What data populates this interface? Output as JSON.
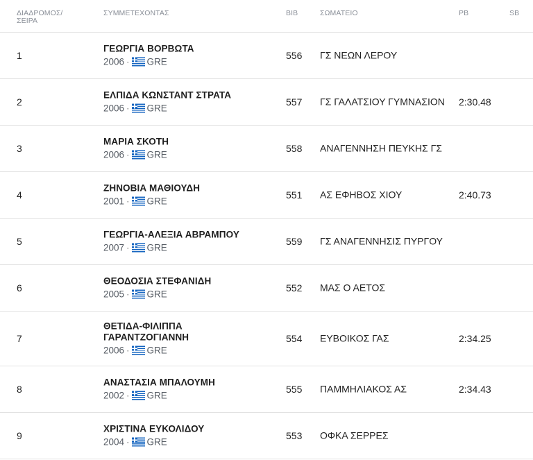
{
  "headers": {
    "lane": "ΔΙΑΔΡΟΜΟΣ/ ΣΕΙΡΑ",
    "athlete": "ΣΥΜΜΕΤΕΧΟΝΤΑΣ",
    "bib": "BIB",
    "club": "ΣΩΜΑΤΕΙΟ",
    "pb": "PB",
    "sb": "SB"
  },
  "flag_icon": "greece-flag-icon",
  "rows": [
    {
      "lane": "1",
      "name": "ΓΕΩΡΓΙΑ ΒΟΡΒΩΤΑ",
      "year": "2006",
      "country": "GRE",
      "bib": "556",
      "club": "ΓΣ ΝΕΩΝ ΛΕΡΟΥ",
      "pb": "",
      "sb": ""
    },
    {
      "lane": "2",
      "name": "ΕΛΠΙΔΑ ΚΩΝΣΤΑΝΤ ΣΤΡΑΤΑ",
      "year": "2006",
      "country": "GRE",
      "bib": "557",
      "club": "ΓΣ ΓΑΛΑΤΣΙΟΥ ΓΥΜΝΑΣΙΟΝ",
      "pb": "2:30.48",
      "sb": ""
    },
    {
      "lane": "3",
      "name": "ΜΑΡΙΑ ΣΚΟΤΗ",
      "year": "2006",
      "country": "GRE",
      "bib": "558",
      "club": "ΑΝΑΓΕΝΝΗΣΗ ΠΕΥΚΗΣ ΓΣ",
      "pb": "",
      "sb": ""
    },
    {
      "lane": "4",
      "name": "ΖΗΝΟΒΙΑ ΜΑΘΙΟΥΔΗ",
      "year": "2001",
      "country": "GRE",
      "bib": "551",
      "club": "ΑΣ ΕΦΗΒΟΣ ΧΙΟΥ",
      "pb": "2:40.73",
      "sb": ""
    },
    {
      "lane": "5",
      "name": "ΓΕΩΡΓΙΑ-ΑΛΕΞΙΑ ΑΒΡΑΜΠΟΥ",
      "year": "2007",
      "country": "GRE",
      "bib": "559",
      "club": "ΓΣ ΑΝΑΓΕΝΝΗΣΙΣ ΠΥΡΓΟΥ",
      "pb": "",
      "sb": ""
    },
    {
      "lane": "6",
      "name": "ΘΕΟΔΟΣΙΑ ΣΤΕΦΑΝΙΔΗ",
      "year": "2005",
      "country": "GRE",
      "bib": "552",
      "club": "ΜΑΣ Ο ΑΕΤΟΣ",
      "pb": "",
      "sb": ""
    },
    {
      "lane": "7",
      "name": "ΘΕΤΙΔΑ-ΦΙΛΙΠΠΑ ΓΑΡΑΝΤΖΟΓΙΑΝΝΗ",
      "year": "2006",
      "country": "GRE",
      "bib": "554",
      "club": "ΕΥΒΟΙΚΟΣ ΓΑΣ",
      "pb": "2:34.25",
      "sb": ""
    },
    {
      "lane": "8",
      "name": "ΑΝΑΣΤΑΣΙΑ ΜΠΑΛΟΥΜΗ",
      "year": "2002",
      "country": "GRE",
      "bib": "555",
      "club": "ΠΑΜΜΗΛΙΑΚΟΣ ΑΣ",
      "pb": "2:34.43",
      "sb": ""
    },
    {
      "lane": "9",
      "name": "ΧΡΙΣΤΙΝΑ ΕΥΚΟΛΙΔΟΥ",
      "year": "2004",
      "country": "GRE",
      "bib": "553",
      "club": "ΟΦΚΑ ΣΕΡΡΕΣ",
      "pb": "",
      "sb": ""
    }
  ]
}
